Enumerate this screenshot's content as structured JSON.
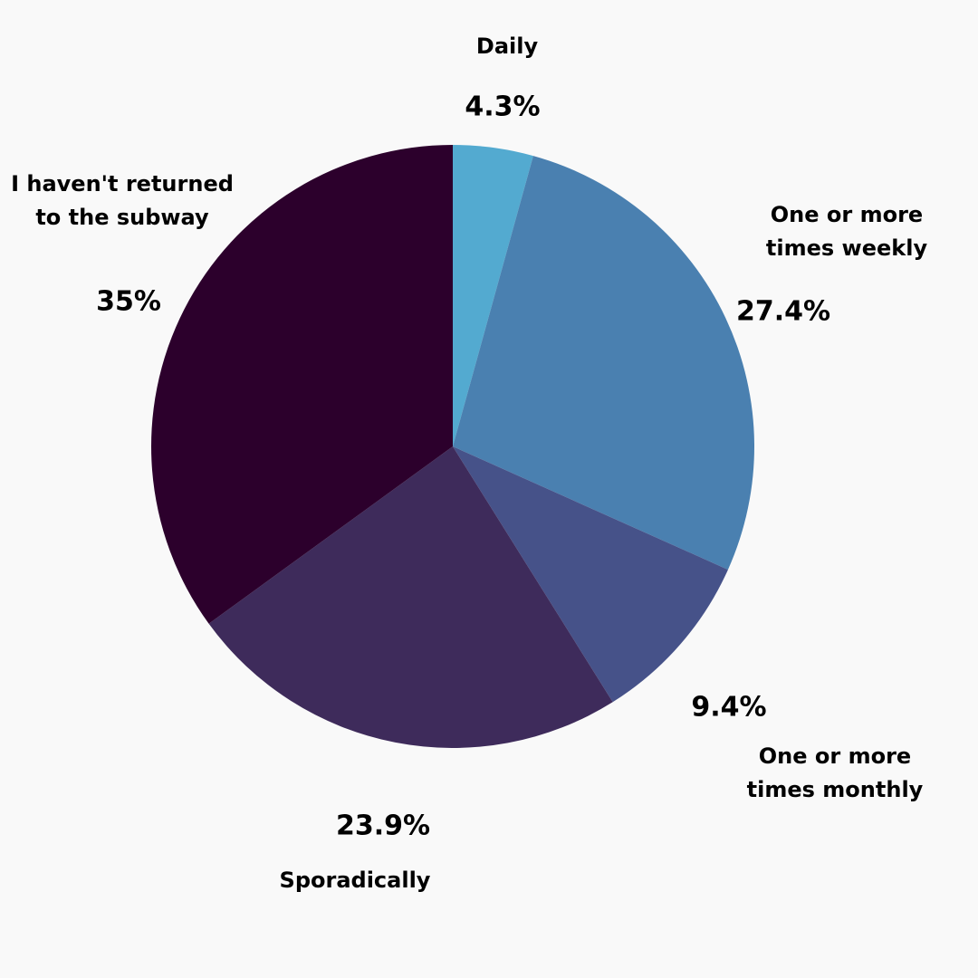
{
  "chart_data": {
    "type": "pie",
    "categories": [
      "Daily",
      "One or more\ntimes weekly",
      "One or more\ntimes monthly",
      "Sporadically",
      "I haven't returned\nto the subway"
    ],
    "values": [
      4.3,
      27.4,
      9.4,
      23.9,
      35
    ],
    "value_labels": [
      "4.3%",
      "27.4%",
      "9.4%",
      "23.9%",
      "35%"
    ],
    "colors": [
      "#53aad0",
      "#4a80b0",
      "#465289",
      "#3e2b5b",
      "#2c002c"
    ]
  }
}
